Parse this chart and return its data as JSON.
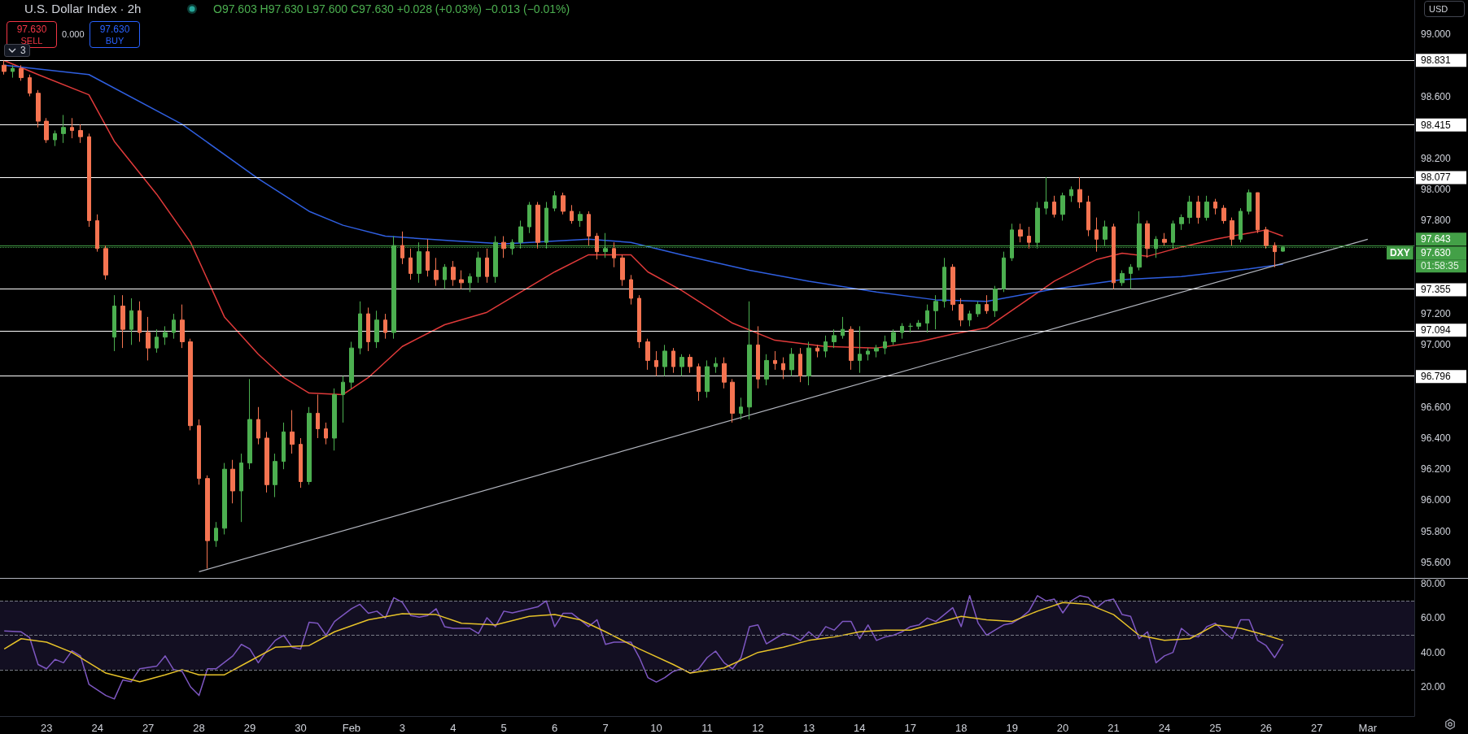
{
  "chart_data": [
    {
      "type": "candlestick",
      "title": "U.S. Dollar Index · 2h",
      "subtitle": "O97.603 H97.630 L97.600 C97.630 +0.028 (+0.03%) −0.013 (−0.01%)",
      "categories": [
        null,
        null,
        null,
        null,
        null,
        "23",
        null,
        null,
        null,
        null,
        null,
        "24",
        null,
        null,
        null,
        null,
        null,
        "27",
        null,
        null,
        null,
        null,
        null,
        "28",
        null,
        null,
        null,
        null,
        null,
        "29",
        null,
        null,
        null,
        null,
        null,
        "30",
        null,
        null,
        null,
        null,
        null,
        "Feb",
        null,
        null,
        null,
        null,
        null,
        "3",
        null,
        null,
        null,
        null,
        null,
        "4",
        null,
        null,
        null,
        null,
        null,
        "5",
        null,
        null,
        null,
        null,
        null,
        "6",
        null,
        null,
        null,
        null,
        null,
        "7",
        null,
        null,
        null,
        null,
        null,
        "10",
        null,
        null,
        null,
        null,
        null,
        "11",
        null,
        null,
        null,
        null,
        null,
        "12",
        null,
        null,
        null,
        null,
        null,
        "13",
        null,
        null,
        null,
        null,
        null,
        "14",
        null,
        null,
        null,
        null,
        null,
        "17",
        null,
        null,
        null,
        null,
        null,
        "18",
        null,
        null,
        null,
        null,
        null,
        "19",
        null,
        null,
        null,
        null,
        null,
        "20",
        null,
        null,
        null,
        null,
        null,
        "21",
        null,
        null,
        null,
        null,
        null,
        "24",
        null,
        null,
        null,
        null,
        null,
        "25",
        null,
        null,
        null,
        null,
        null,
        "26",
        null,
        null,
        null,
        null,
        null,
        "27",
        null,
        null,
        null,
        null,
        null,
        "Mar",
        null,
        null,
        null,
        null,
        null
      ],
      "ohlc": [
        [
          98.8,
          98.83,
          98.74,
          98.76
        ],
        [
          98.76,
          98.8,
          98.72,
          98.78
        ],
        [
          98.78,
          98.8,
          98.7,
          98.72
        ],
        [
          98.72,
          98.74,
          98.6,
          98.62
        ],
        [
          98.62,
          98.64,
          98.4,
          98.44
        ],
        [
          98.44,
          98.46,
          98.3,
          98.32
        ],
        [
          98.32,
          98.38,
          98.28,
          98.36
        ],
        [
          98.36,
          98.48,
          98.3,
          98.4
        ],
        [
          98.4,
          98.46,
          98.33,
          98.38
        ],
        [
          98.38,
          98.42,
          98.3,
          98.34
        ],
        [
          98.34,
          98.36,
          97.76,
          97.8
        ],
        [
          97.8,
          97.84,
          97.6,
          97.62
        ],
        [
          97.62,
          97.64,
          97.42,
          97.45
        ],
        [
          97.05,
          97.32,
          96.96,
          97.25
        ],
        [
          97.25,
          97.32,
          96.98,
          97.1
        ],
        [
          97.1,
          97.3,
          97.0,
          97.22
        ],
        [
          97.22,
          97.28,
          97.02,
          97.08
        ],
        [
          97.08,
          97.18,
          96.9,
          96.98
        ],
        [
          96.98,
          97.1,
          96.95,
          97.05
        ],
        [
          97.05,
          97.12,
          97.0,
          97.08
        ],
        [
          97.08,
          97.2,
          97.04,
          97.16
        ],
        [
          97.16,
          97.26,
          96.98,
          97.02
        ],
        [
          97.02,
          97.04,
          96.45,
          96.48
        ],
        [
          96.48,
          96.52,
          96.1,
          96.14
        ],
        [
          96.14,
          96.16,
          95.56,
          95.74
        ],
        [
          95.74,
          95.86,
          95.7,
          95.82
        ],
        [
          95.82,
          96.24,
          95.78,
          96.2
        ],
        [
          96.2,
          96.26,
          95.98,
          96.06
        ],
        [
          96.06,
          96.3,
          95.86,
          96.24
        ],
        [
          96.24,
          96.78,
          96.2,
          96.52
        ],
        [
          96.52,
          96.6,
          96.36,
          96.4
        ],
        [
          96.4,
          96.44,
          96.05,
          96.1
        ],
        [
          96.1,
          96.3,
          96.02,
          96.25
        ],
        [
          96.25,
          96.5,
          96.2,
          96.44
        ],
        [
          96.44,
          96.58,
          96.3,
          96.36
        ],
        [
          96.36,
          96.4,
          96.08,
          96.12
        ],
        [
          96.12,
          96.6,
          96.1,
          96.56
        ],
        [
          96.56,
          96.68,
          96.4,
          96.46
        ],
        [
          96.46,
          96.5,
          96.36,
          96.4
        ],
        [
          96.4,
          96.72,
          96.32,
          96.68
        ],
        [
          96.68,
          96.8,
          96.5,
          96.76
        ],
        [
          96.76,
          97.02,
          96.72,
          96.98
        ],
        [
          96.98,
          97.28,
          96.94,
          97.2
        ],
        [
          97.2,
          97.24,
          96.96,
          97.02
        ],
        [
          97.02,
          97.22,
          96.98,
          97.16
        ],
        [
          97.16,
          97.2,
          97.04,
          97.08
        ],
        [
          97.08,
          97.7,
          97.04,
          97.64
        ],
        [
          97.64,
          97.73,
          97.52,
          97.56
        ],
        [
          97.56,
          97.62,
          97.42,
          97.46
        ],
        [
          97.46,
          97.66,
          97.4,
          97.6
        ],
        [
          97.6,
          97.68,
          97.44,
          97.48
        ],
        [
          97.48,
          97.56,
          97.38,
          97.42
        ],
        [
          97.42,
          97.52,
          97.36,
          97.5
        ],
        [
          97.5,
          97.54,
          97.38,
          97.42
        ],
        [
          97.42,
          97.48,
          97.36,
          97.4
        ],
        [
          97.4,
          97.46,
          97.34,
          97.44
        ],
        [
          97.44,
          97.6,
          97.4,
          97.56
        ],
        [
          97.56,
          97.62,
          97.4,
          97.44
        ],
        [
          97.44,
          97.7,
          97.4,
          97.66
        ],
        [
          97.66,
          97.7,
          97.56,
          97.62
        ],
        [
          97.62,
          97.68,
          97.58,
          97.66
        ],
        [
          97.66,
          97.8,
          97.62,
          97.76
        ],
        [
          97.76,
          97.92,
          97.72,
          97.9
        ],
        [
          97.9,
          97.92,
          97.62,
          97.66
        ],
        [
          97.66,
          97.92,
          97.62,
          97.88
        ],
        [
          97.88,
          97.99,
          97.86,
          97.96
        ],
        [
          97.96,
          97.98,
          97.84,
          97.86
        ],
        [
          97.86,
          97.9,
          97.78,
          97.8
        ],
        [
          97.8,
          97.86,
          97.76,
          97.84
        ],
        [
          97.84,
          97.86,
          97.64,
          97.7
        ],
        [
          97.7,
          97.72,
          97.55,
          97.6
        ],
        [
          97.6,
          97.72,
          97.56,
          97.62
        ],
        [
          97.62,
          97.66,
          97.5,
          97.56
        ],
        [
          97.56,
          97.58,
          97.38,
          97.42
        ],
        [
          97.42,
          97.45,
          97.26,
          97.3
        ],
        [
          97.3,
          97.32,
          96.98,
          97.02
        ],
        [
          97.02,
          97.04,
          96.84,
          96.9
        ],
        [
          96.9,
          96.96,
          96.8,
          96.86
        ],
        [
          96.86,
          97.0,
          96.8,
          96.96
        ],
        [
          96.96,
          96.98,
          96.82,
          96.86
        ],
        [
          96.86,
          96.94,
          96.8,
          96.92
        ],
        [
          96.92,
          96.94,
          96.82,
          96.86
        ],
        [
          96.86,
          96.88,
          96.64,
          96.7
        ],
        [
          96.7,
          96.9,
          96.66,
          96.86
        ],
        [
          96.86,
          96.92,
          96.82,
          96.88
        ],
        [
          96.88,
          96.92,
          96.72,
          96.76
        ],
        [
          96.76,
          96.78,
          96.5,
          96.56
        ],
        [
          96.56,
          96.66,
          96.52,
          96.6
        ],
        [
          96.6,
          97.28,
          96.52,
          97.0
        ],
        [
          97.0,
          97.12,
          96.72,
          96.78
        ],
        [
          96.78,
          96.94,
          96.74,
          96.9
        ],
        [
          96.9,
          96.96,
          96.84,
          96.88
        ],
        [
          96.88,
          96.92,
          96.78,
          96.84
        ],
        [
          96.84,
          96.98,
          96.8,
          96.94
        ],
        [
          96.94,
          96.98,
          96.76,
          96.8
        ],
        [
          96.8,
          97.02,
          96.74,
          96.98
        ],
        [
          96.98,
          97.0,
          96.92,
          96.96
        ],
        [
          96.96,
          97.06,
          96.92,
          97.02
        ],
        [
          97.02,
          97.1,
          96.98,
          97.06
        ],
        [
          97.06,
          97.18,
          97.04,
          97.1
        ],
        [
          97.1,
          97.12,
          96.84,
          96.9
        ],
        [
          96.9,
          97.12,
          96.82,
          96.94
        ],
        [
          96.94,
          96.98,
          96.9,
          96.96
        ],
        [
          96.96,
          97.0,
          96.92,
          96.98
        ],
        [
          96.98,
          97.06,
          96.94,
          97.02
        ],
        [
          97.02,
          97.1,
          97.0,
          97.08
        ],
        [
          97.08,
          97.14,
          97.04,
          97.12
        ],
        [
          97.12,
          97.14,
          97.08,
          97.12
        ],
        [
          97.12,
          97.16,
          97.1,
          97.14
        ],
        [
          97.14,
          97.26,
          97.08,
          97.22
        ],
        [
          97.22,
          97.32,
          97.1,
          97.28
        ],
        [
          97.28,
          97.56,
          97.24,
          97.5
        ],
        [
          97.5,
          97.52,
          97.22,
          97.26
        ],
        [
          97.26,
          97.3,
          97.12,
          97.16
        ],
        [
          97.16,
          97.22,
          97.12,
          97.2
        ],
        [
          97.2,
          97.28,
          97.18,
          97.26
        ],
        [
          97.26,
          97.32,
          97.2,
          97.22
        ],
        [
          97.22,
          97.38,
          97.18,
          97.36
        ],
        [
          97.36,
          97.6,
          97.34,
          97.56
        ],
        [
          97.56,
          97.78,
          97.54,
          97.74
        ],
        [
          97.74,
          97.78,
          97.66,
          97.7
        ],
        [
          97.7,
          97.76,
          97.62,
          97.66
        ],
        [
          97.66,
          97.92,
          97.62,
          97.88
        ],
        [
          97.88,
          98.08,
          97.84,
          97.92
        ],
        [
          97.92,
          97.96,
          97.82,
          97.84
        ],
        [
          97.84,
          97.98,
          97.8,
          97.96
        ],
        [
          97.96,
          98.02,
          97.92,
          98.0
        ],
        [
          98.0,
          98.08,
          97.88,
          97.92
        ],
        [
          97.92,
          97.96,
          97.7,
          97.74
        ],
        [
          97.74,
          97.82,
          97.6,
          97.68
        ],
        [
          97.68,
          97.8,
          97.64,
          97.76
        ],
        [
          97.76,
          97.78,
          97.36,
          97.4
        ],
        [
          97.4,
          97.48,
          97.38,
          97.46
        ],
        [
          97.46,
          97.52,
          97.36,
          97.5
        ],
        [
          97.5,
          97.86,
          97.48,
          97.78
        ],
        [
          97.78,
          97.8,
          97.56,
          97.62
        ],
        [
          97.62,
          97.7,
          97.56,
          97.68
        ],
        [
          97.68,
          97.72,
          97.64,
          97.66
        ],
        [
          97.66,
          97.8,
          97.62,
          97.78
        ],
        [
          97.78,
          97.84,
          97.74,
          97.82
        ],
        [
          97.82,
          97.96,
          97.78,
          97.92
        ],
        [
          97.92,
          97.96,
          97.78,
          97.82
        ],
        [
          97.82,
          97.96,
          97.8,
          97.92
        ],
        [
          97.92,
          97.94,
          97.84,
          97.88
        ],
        [
          97.88,
          97.9,
          97.78,
          97.8
        ],
        [
          97.8,
          97.82,
          97.64,
          97.68
        ],
        [
          97.68,
          97.88,
          97.66,
          97.86
        ],
        [
          97.86,
          98.0,
          97.84,
          97.98
        ],
        [
          97.98,
          97.98,
          97.72,
          97.74
        ],
        [
          97.74,
          97.76,
          97.62,
          97.64
        ],
        [
          97.64,
          97.66,
          97.5,
          97.6
        ],
        [
          97.603,
          97.63,
          97.6,
          97.63
        ],
        null,
        null,
        null,
        null,
        null,
        null,
        null,
        null,
        null,
        null,
        null,
        null,
        null,
        null,
        null
      ],
      "colors": [
        "#f57451",
        "#4caf50",
        "#f57451",
        "#f57451",
        "#f57451",
        "#f57451",
        "#4caf50",
        "#4caf50",
        "#f57451",
        "#f57451",
        "#f57451",
        "#f57451",
        "#f57451",
        "#4caf50",
        "#f57451",
        "#4caf50",
        "#f57451",
        "#f57451",
        "#4caf50",
        "#4caf50",
        "#4caf50",
        "#f57451",
        "#f57451",
        "#f57451",
        "#f57451",
        "#4caf50",
        "#4caf50",
        "#f57451",
        "#4caf50",
        "#4caf50",
        "#f57451",
        "#f57451",
        "#4caf50",
        "#4caf50",
        "#f57451",
        "#f57451",
        "#4caf50",
        "#f57451",
        "#f57451",
        "#4caf50",
        "#4caf50",
        "#4caf50",
        "#4caf50",
        "#f57451",
        "#4caf50",
        "#f57451",
        "#4caf50",
        "#f57451",
        "#f57451",
        "#4caf50",
        "#f57451",
        "#f57451",
        "#4caf50",
        "#f57451",
        "#f57451",
        "#4caf50",
        "#4caf50",
        "#f57451",
        "#4caf50",
        "#f57451",
        "#4caf50",
        "#4caf50",
        "#4caf50",
        "#f57451",
        "#4caf50",
        "#4caf50",
        "#f57451",
        "#f57451",
        "#4caf50",
        "#f57451",
        "#f57451",
        "#4caf50",
        "#f57451",
        "#f57451",
        "#f57451",
        "#f57451",
        "#f57451",
        "#f57451",
        "#4caf50",
        "#f57451",
        "#4caf50",
        "#f57451",
        "#f57451",
        "#4caf50",
        "#4caf50",
        "#f57451",
        "#f57451",
        "#4caf50",
        "#4caf50",
        "#f57451",
        "#4caf50",
        "#f57451",
        "#f57451",
        "#4caf50",
        "#f57451",
        "#4caf50",
        "#f57451",
        "#4caf50",
        "#4caf50",
        "#4caf50",
        "#f57451",
        "#4caf50",
        "#4caf50",
        "#4caf50",
        "#4caf50",
        "#4caf50",
        "#4caf50",
        "#4caf50",
        "#4caf50",
        "#4caf50",
        "#4caf50",
        "#4caf50",
        "#f57451",
        "#f57451",
        "#4caf50",
        "#4caf50",
        "#f57451",
        "#4caf50",
        "#4caf50",
        "#4caf50",
        "#f57451",
        "#f57451",
        "#4caf50",
        "#4caf50",
        "#f57451",
        "#4caf50",
        "#4caf50",
        "#f57451",
        "#f57451",
        "#f57451",
        "#4caf50",
        "#f57451",
        "#4caf50",
        "#4caf50",
        "#4caf50",
        "#f57451",
        "#4caf50",
        "#f57451",
        "#4caf50",
        "#4caf50",
        "#4caf50",
        "#f57451",
        "#4caf50",
        "#f57451",
        "#f57451",
        "#f57451",
        "#4caf50",
        "#4caf50",
        "#f57451",
        "#f57451",
        "#f57451",
        "#4caf50",
        null,
        null,
        null,
        null,
        null,
        null,
        null,
        null,
        null,
        null,
        null,
        null,
        null,
        null,
        null
      ],
      "series": [
        {
          "type": "line",
          "color": "#e03a3a",
          "values": [
            98.83,
            null,
            null,
            null,
            98.74,
            null,
            null,
            null,
            null,
            null,
            98.61,
            null,
            null,
            98.31,
            null,
            null,
            null,
            null,
            97.97,
            null,
            null,
            null,
            97.66,
            null,
            null,
            null,
            97.18,
            null,
            null,
            null,
            96.94,
            null,
            null,
            96.79,
            null,
            null,
            96.69,
            null,
            null,
            null,
            96.68,
            null,
            null,
            96.79,
            null,
            null,
            null,
            96.99,
            null,
            null,
            null,
            null,
            97.13,
            null,
            null,
            null,
            null,
            97.21,
            null,
            null,
            null,
            null,
            null,
            null,
            null,
            97.47,
            null,
            null,
            null,
            97.58,
            null,
            null,
            null,
            null,
            97.58,
            null,
            97.47,
            null,
            null,
            null,
            97.35,
            null,
            null,
            null,
            null,
            null,
            97.14,
            null,
            null,
            null,
            null,
            97.03,
            null,
            null,
            null,
            null,
            null,
            96.99,
            null,
            null,
            null,
            null,
            null,
            96.98,
            null,
            null,
            null,
            null,
            97.02,
            null,
            null,
            null,
            97.07,
            null,
            null,
            null,
            97.11,
            null,
            null,
            null,
            97.26,
            null,
            null,
            null,
            97.41,
            null,
            null,
            null,
            null,
            97.55,
            null,
            null,
            97.59,
            null,
            null,
            97.57,
            null,
            null,
            null,
            97.63,
            null,
            null,
            null,
            97.68,
            null,
            null,
            null,
            97.72,
            null,
            97.74,
            null,
            97.7,
            null,
            null,
            null,
            null,
            null,
            null,
            null,
            null,
            null,
            null,
            null,
            null,
            null,
            null,
            null
          ]
        },
        {
          "type": "line",
          "color": "#2f5fe0",
          "values": [
            98.8,
            null,
            null,
            null,
            null,
            null,
            null,
            null,
            null,
            null,
            98.74,
            null,
            null,
            null,
            null,
            null,
            null,
            null,
            null,
            null,
            null,
            98.42,
            null,
            null,
            null,
            null,
            null,
            null,
            null,
            null,
            98.07,
            null,
            null,
            null,
            null,
            null,
            97.86,
            null,
            null,
            null,
            97.77,
            null,
            null,
            null,
            null,
            97.7,
            null,
            null,
            null,
            null,
            null,
            null,
            null,
            97.67,
            null,
            null,
            null,
            null,
            null,
            97.65,
            null,
            null,
            null,
            null,
            null,
            null,
            null,
            null,
            null,
            97.68,
            null,
            null,
            null,
            null,
            97.66,
            null,
            null,
            null,
            null,
            null,
            97.58,
            null,
            null,
            null,
            null,
            null,
            null,
            null,
            97.48,
            null,
            null,
            null,
            null,
            null,
            null,
            97.41,
            null,
            null,
            null,
            null,
            null,
            null,
            null,
            97.34,
            null,
            null,
            null,
            null,
            null,
            null,
            97.29,
            null,
            null,
            null,
            null,
            null,
            97.28,
            null,
            null,
            null,
            null,
            null,
            null,
            null,
            97.36,
            null,
            null,
            null,
            null,
            null,
            null,
            null,
            97.42,
            null,
            null,
            null,
            null,
            null,
            null,
            97.44,
            null,
            null,
            null,
            null,
            null,
            null,
            null,
            97.49,
            null,
            null,
            null,
            97.52,
            null,
            null,
            null,
            null,
            null,
            null,
            null,
            null,
            null,
            null,
            null,
            null,
            null,
            null,
            null
          ]
        },
        {
          "type": "line",
          "color": "#b2b5be",
          "x": [
            "28",
            "Mar"
          ],
          "values": [
            95.54,
            97.68
          ]
        }
      ],
      "ylim": [
        95.5,
        99.22
      ],
      "yticks": [
        {
          "value": 95.6,
          "label": "95.600"
        },
        {
          "value": 95.8,
          "label": "95.800"
        },
        {
          "value": 96,
          "label": "96.000"
        },
        {
          "value": 96.2,
          "label": "96.200"
        },
        {
          "value": 96.4,
          "label": "96.400"
        },
        {
          "value": 96.6,
          "label": "96.600"
        },
        {
          "value": 97,
          "label": "97.000"
        },
        {
          "value": 97.2,
          "label": "97.200"
        },
        {
          "value": 97.8,
          "label": "97.800"
        },
        {
          "value": 98,
          "label": "98.000"
        },
        {
          "value": 98.2,
          "label": "98.200"
        },
        {
          "value": 98.6,
          "label": "98.600"
        },
        {
          "value": 99,
          "label": "99.000"
        }
      ],
      "ref_lines": [
        {
          "axis": "y",
          "value": 98.831,
          "label": "98.831",
          "color": "#ffffff"
        },
        {
          "axis": "y",
          "value": 98.415,
          "label": "98.415",
          "color": "#ffffff"
        },
        {
          "axis": "y",
          "value": 98.077,
          "label": "98.077",
          "color": "#ffffff"
        },
        {
          "axis": "y",
          "value": 97.355,
          "label": "97.355",
          "color": "#ffffff"
        },
        {
          "axis": "y",
          "value": 97.094,
          "label": "97.094",
          "color": "#ffffff"
        },
        {
          "axis": "y",
          "value": 96.796,
          "label": "96.796",
          "color": "#ffffff"
        },
        {
          "axis": "y",
          "value": 97.643,
          "label": "97.643",
          "color": "#43a047",
          "line_style": "solid"
        },
        {
          "axis": "y",
          "value": 97.63,
          "label": "97.630",
          "color": "#43a047",
          "line_style": "dotted"
        }
      ],
      "annotations": [
        "97.630",
        "SELL",
        "0.000",
        "97.630",
        "BUY",
        "USD",
        "3",
        "DXY",
        "01:58:35"
      ],
      "tick_labels": "y",
      "grid": false
    },
    {
      "type": "line",
      "categories": [
        null,
        null,
        null,
        null,
        null,
        "23",
        null,
        null,
        null,
        null,
        null,
        "24",
        null,
        null,
        null,
        null,
        null,
        "27",
        null,
        null,
        null,
        null,
        null,
        "28",
        null,
        null,
        null,
        null,
        null,
        "29",
        null,
        null,
        null,
        null,
        null,
        "30",
        null,
        null,
        null,
        null,
        null,
        "Feb",
        null,
        null,
        null,
        null,
        null,
        "3",
        null,
        null,
        null,
        null,
        null,
        "4",
        null,
        null,
        null,
        null,
        null,
        "5",
        null,
        null,
        null,
        null,
        null,
        "6",
        null,
        null,
        null,
        null,
        null,
        "7",
        null,
        null,
        null,
        null,
        null,
        "10",
        null,
        null,
        null,
        null,
        null,
        "11",
        null,
        null,
        null,
        null,
        null,
        "12",
        null,
        null,
        null,
        null,
        null,
        "13",
        null,
        null,
        null,
        null,
        null,
        "14",
        null,
        null,
        null,
        null,
        null,
        "17",
        null,
        null,
        null,
        null,
        null,
        "18",
        null,
        null,
        null,
        null,
        null,
        "19",
        null,
        null,
        null,
        null,
        null,
        "20",
        null,
        null,
        null,
        null,
        null,
        "21",
        null,
        null,
        null,
        null,
        null,
        "24",
        null,
        null,
        null,
        null,
        null,
        "25",
        null,
        null,
        null,
        null,
        null,
        "26",
        null,
        null,
        null,
        null,
        null,
        "27",
        null,
        null,
        null,
        null,
        null,
        "Mar",
        null,
        null,
        null,
        null,
        null
      ],
      "series": [
        {
          "color": "#7e57c2",
          "values": [
            52.5,
            null,
            52,
            48.6,
            33,
            30.5,
            36,
            34,
            41,
            38,
            21.5,
            null,
            15,
            13,
            24,
            23,
            30.5,
            null,
            32,
            38,
            30,
            29,
            20,
            15,
            30.5,
            30.5,
            null,
            38,
            44.7,
            42,
            34,
            41,
            47,
            50,
            43,
            42,
            57.6,
            57,
            50,
            58,
            null,
            65.4,
            68,
            62.8,
            64,
            60,
            71.8,
            69.2,
            61.5,
            60.5,
            61.5,
            65.4,
            55,
            54,
            null,
            54,
            51,
            60.2,
            55,
            64,
            63,
            null,
            65.4,
            66.5,
            70,
            55,
            62.8,
            62.8,
            59,
            55,
            59,
            44.7,
            46,
            null,
            46,
            37,
            25.4,
            22.8,
            25.4,
            29,
            30.5,
            28,
            30.5,
            37,
            40.8,
            34,
            30.5,
            37,
            55,
            56,
            45,
            48,
            51,
            50,
            47,
            52,
            48,
            55,
            53,
            58,
            58,
            48,
            56,
            47,
            49,
            50,
            52,
            55,
            56,
            60,
            58,
            62,
            66,
            55,
            73,
            57,
            50,
            53,
            56,
            57,
            60,
            64,
            73,
            70,
            71,
            63,
            70,
            73,
            72,
            66,
            70,
            71,
            62,
            61,
            48,
            52,
            34,
            38,
            40,
            54,
            50,
            49,
            55,
            57,
            52,
            48,
            59,
            59,
            47,
            44,
            37,
            45,
            null,
            null,
            null,
            null,
            null,
            null,
            null,
            null,
            null,
            null,
            null,
            null,
            null,
            null,
            null
          ]
        },
        {
          "color": "#e6c229",
          "values": [
            42,
            null,
            48,
            null,
            null,
            46,
            null,
            null,
            40,
            null,
            null,
            null,
            28,
            null,
            null,
            null,
            23,
            null,
            null,
            27,
            null,
            30,
            null,
            27,
            null,
            null,
            27,
            null,
            null,
            35,
            null,
            null,
            43,
            null,
            null,
            null,
            44,
            null,
            null,
            52,
            null,
            null,
            null,
            59,
            null,
            null,
            null,
            62.5,
            null,
            null,
            null,
            62,
            null,
            null,
            57,
            null,
            null,
            null,
            56,
            null,
            null,
            null,
            61,
            null,
            null,
            62,
            null,
            null,
            59,
            null,
            null,
            52,
            null,
            null,
            null,
            42,
            null,
            null,
            null,
            33,
            null,
            28,
            null,
            null,
            null,
            31,
            null,
            null,
            null,
            40,
            null,
            null,
            43,
            null,
            null,
            47,
            null,
            null,
            49,
            null,
            null,
            52,
            null,
            null,
            53,
            null,
            null,
            53,
            null,
            null,
            57,
            null,
            null,
            61,
            null,
            null,
            59,
            null,
            null,
            58,
            null,
            null,
            64,
            null,
            null,
            69,
            null,
            null,
            68,
            null,
            null,
            62,
            null,
            null,
            50,
            null,
            null,
            47,
            null,
            null,
            48,
            null,
            null,
            56,
            null,
            null,
            54,
            null,
            null,
            50,
            null,
            47,
            null,
            null,
            null,
            null,
            null,
            null,
            null,
            null,
            null,
            null,
            null,
            null,
            null,
            null,
            null
          ]
        }
      ],
      "ylim": [
        3,
        82.6
      ],
      "yticks": [
        {
          "value": 20,
          "label": "20.00"
        },
        {
          "value": 40,
          "label": "40.00"
        },
        {
          "value": 60,
          "label": "60.00"
        },
        {
          "value": 80,
          "label": "80.00"
        }
      ],
      "bands": [
        {
          "axis": "y",
          "from": 30,
          "to": 70,
          "color": "#130f22"
        }
      ],
      "ref_lines": [
        {
          "axis": "y",
          "value": 70,
          "color": "#787b86",
          "line_style": "dashed"
        },
        {
          "axis": "y",
          "value": 50,
          "color": "#787b86",
          "line_style": "dashed"
        },
        {
          "axis": "y",
          "value": 30,
          "color": "#787b86",
          "line_style": "dashed"
        }
      ],
      "grid": false
    }
  ]
}
